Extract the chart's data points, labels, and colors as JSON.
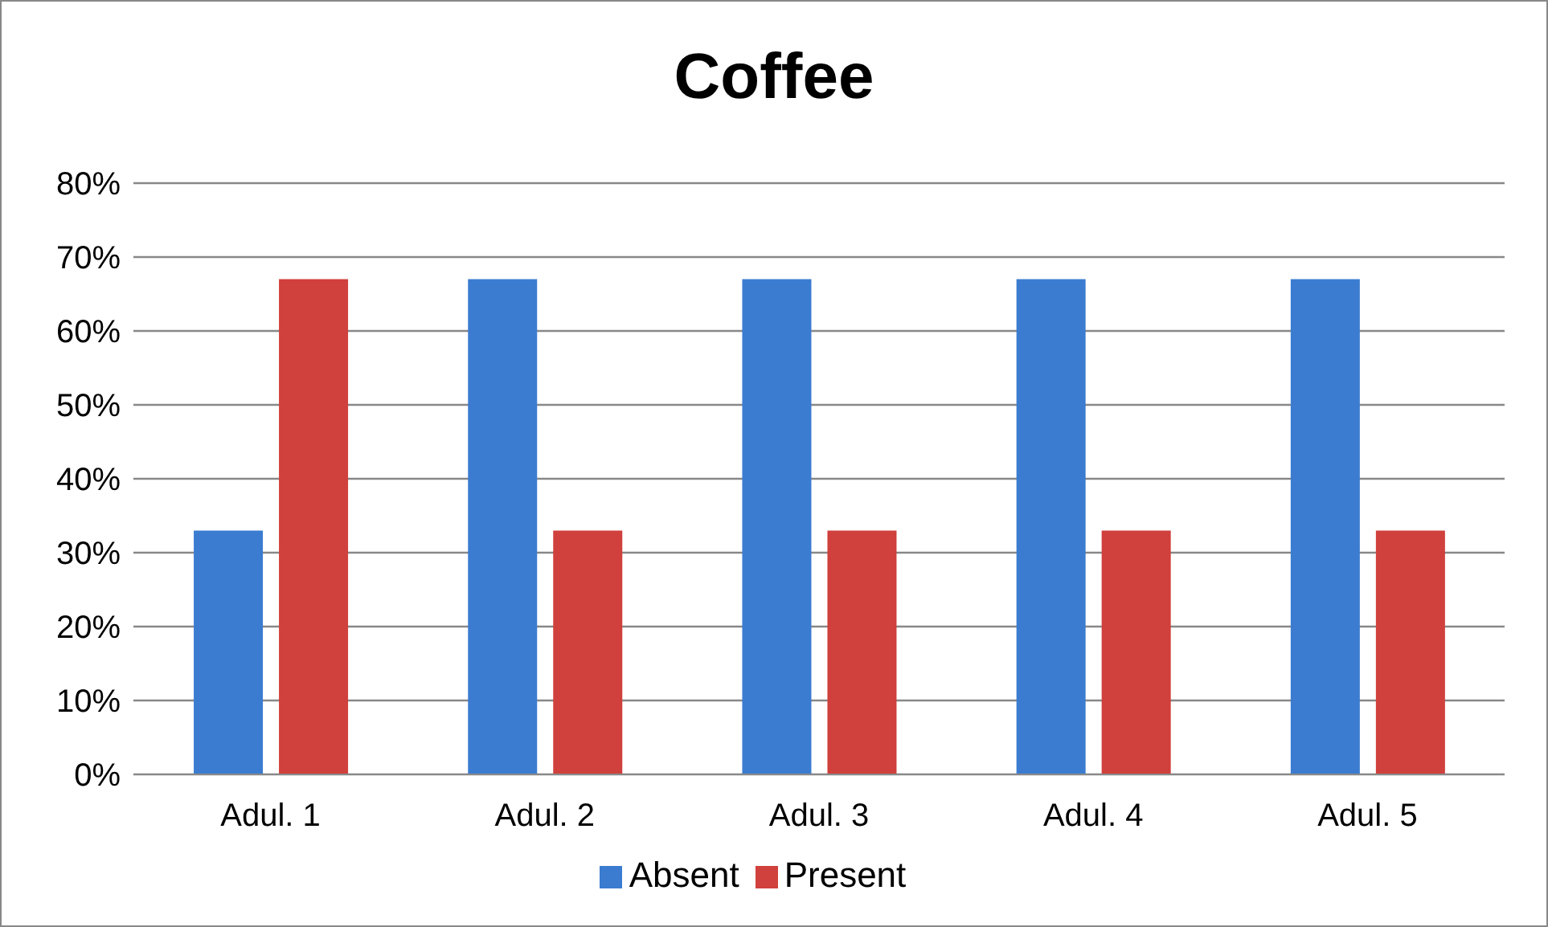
{
  "chart_data": {
    "type": "bar",
    "title": "Coffee",
    "categories": [
      "Adul. 1",
      "Adul. 2",
      "Adul. 3",
      "Adul. 4",
      "Adul. 5"
    ],
    "series": [
      {
        "name": "Absent",
        "color": "#3b7cd0",
        "values": [
          33,
          67,
          67,
          67,
          67
        ]
      },
      {
        "name": "Present",
        "color": "#d0403c",
        "values": [
          67,
          33,
          33,
          33,
          33
        ]
      }
    ],
    "ylim": [
      0,
      80
    ],
    "yticks": [
      {
        "value": 0,
        "label": "0%"
      },
      {
        "value": 10,
        "label": "10%"
      },
      {
        "value": 20,
        "label": "20%"
      },
      {
        "value": 30,
        "label": "30%"
      },
      {
        "value": 40,
        "label": "40%"
      },
      {
        "value": 50,
        "label": "50%"
      },
      {
        "value": 60,
        "label": "60%"
      },
      {
        "value": 70,
        "label": "70%"
      },
      {
        "value": 80,
        "label": "80%"
      }
    ],
    "grid": "y",
    "legend": "bottom"
  }
}
